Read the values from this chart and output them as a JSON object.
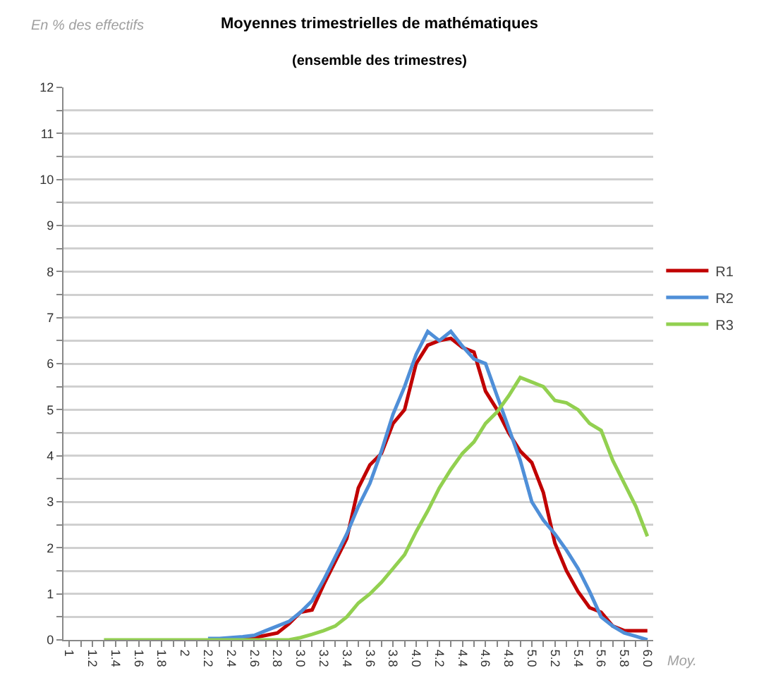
{
  "chart_data": {
    "type": "line",
    "title": "Moyennes trimestrielles de mathématiques",
    "subtitle": "(ensemble des trimestres)",
    "ylabel": "En % des effectifs",
    "xlabel": "Moy.",
    "x": [
      1.3,
      1.4,
      1.5,
      1.6,
      1.7,
      1.8,
      1.9,
      2,
      2.1,
      2.2,
      2.3,
      2.4,
      2.5,
      2.6,
      2.7,
      2.8,
      2.9,
      3,
      3.1,
      3.2,
      3.3,
      3.4,
      3.5,
      3.6,
      3.7,
      3.8,
      3.9,
      4,
      4.1,
      4.2,
      4.3,
      4.4,
      4.5,
      4.6,
      4.7,
      4.8,
      4.9,
      5,
      5.1,
      5.2,
      5.3,
      5.4,
      5.5,
      5.6,
      5.7,
      5.8,
      5.9,
      6
    ],
    "series": [
      {
        "name": "R1",
        "color": "#c00000",
        "values": [
          null,
          null,
          null,
          null,
          null,
          null,
          null,
          null,
          null,
          null,
          null,
          null,
          0.05,
          0.05,
          0.1,
          0.15,
          0.35,
          0.6,
          0.65,
          1.2,
          1.7,
          2.2,
          3.3,
          3.8,
          4.05,
          4.7,
          5.0,
          6.0,
          6.4,
          6.5,
          6.55,
          6.35,
          6.25,
          5.4,
          5.0,
          4.5,
          4.1,
          3.85,
          3.2,
          2.1,
          1.5,
          1.05,
          0.7,
          0.6,
          0.3,
          0.2,
          0.2,
          0.2
        ]
      },
      {
        "name": "R2",
        "color": "#4f8fd8",
        "values": [
          null,
          null,
          null,
          null,
          null,
          null,
          null,
          null,
          null,
          0.03,
          0.03,
          0.05,
          0.07,
          0.1,
          0.2,
          0.3,
          0.4,
          0.6,
          0.85,
          1.3,
          1.8,
          2.3,
          2.9,
          3.4,
          4.1,
          4.9,
          5.5,
          6.2,
          6.7,
          6.5,
          6.7,
          6.38,
          6.1,
          6.0,
          5.3,
          4.6,
          3.9,
          3.0,
          2.6,
          2.3,
          1.95,
          1.55,
          1.05,
          0.5,
          0.3,
          0.15,
          0.08,
          0.0
        ]
      },
      {
        "name": "R3",
        "color": "#92d050",
        "values": [
          0,
          0,
          0,
          0,
          0,
          0,
          0,
          0,
          0,
          0,
          0,
          0,
          0,
          0,
          0,
          0,
          0,
          0.05,
          0.12,
          0.2,
          0.3,
          0.5,
          0.8,
          1.0,
          1.25,
          1.55,
          1.85,
          2.35,
          2.8,
          3.3,
          3.7,
          4.05,
          4.3,
          4.7,
          4.95,
          5.3,
          5.7,
          5.6,
          5.5,
          5.2,
          5.15,
          5.0,
          4.7,
          4.55,
          3.9,
          3.4,
          2.9,
          2.25
        ]
      }
    ],
    "xlim": [
      0.95,
      6.05
    ],
    "xticks": [
      1,
      {
        "value": 1.1,
        "label": null
      },
      {
        "value": 1.2,
        "label": "1.2"
      },
      {
        "value": 1.3,
        "label": null
      },
      {
        "value": 1.4,
        "label": "1.4"
      },
      {
        "value": 1.5,
        "label": null
      },
      {
        "value": 1.6,
        "label": "1.6"
      },
      {
        "value": 1.7,
        "label": null
      },
      {
        "value": 1.8,
        "label": "1.8"
      },
      {
        "value": 1.9,
        "label": null
      },
      2,
      {
        "value": 2.1,
        "label": null
      },
      {
        "value": 2.2,
        "label": "2.2"
      },
      {
        "value": 2.3,
        "label": null
      },
      {
        "value": 2.4,
        "label": "2.4"
      },
      {
        "value": 2.5,
        "label": null
      },
      {
        "value": 2.6,
        "label": "2.6"
      },
      {
        "value": 2.7,
        "label": null
      },
      {
        "value": 2.8,
        "label": "2.8"
      },
      {
        "value": 2.9,
        "label": null
      },
      {
        "value": 3,
        "label": "3.0"
      },
      {
        "value": 3.1,
        "label": null
      },
      {
        "value": 3.2,
        "label": "3.2"
      },
      {
        "value": 3.3,
        "label": null
      },
      {
        "value": 3.4,
        "label": "3.4"
      },
      {
        "value": 3.5,
        "label": null
      },
      {
        "value": 3.6,
        "label": "3.6"
      },
      {
        "value": 3.7,
        "label": null
      },
      {
        "value": 3.8,
        "label": "3.8"
      },
      {
        "value": 3.9,
        "label": null
      },
      {
        "value": 4,
        "label": "4.0"
      },
      {
        "value": 4.1,
        "label": null
      },
      {
        "value": 4.2,
        "label": "4.2"
      },
      {
        "value": 4.3,
        "label": null
      },
      {
        "value": 4.4,
        "label": "4.4"
      },
      {
        "value": 4.5,
        "label": null
      },
      {
        "value": 4.6,
        "label": "4.6"
      },
      {
        "value": 4.7,
        "label": null
      },
      {
        "value": 4.8,
        "label": "4.8"
      },
      {
        "value": 4.9,
        "label": null
      },
      {
        "value": 5,
        "label": "5.0"
      },
      {
        "value": 5.1,
        "label": null
      },
      {
        "value": 5.2,
        "label": "5.2"
      },
      {
        "value": 5.3,
        "label": null
      },
      {
        "value": 5.4,
        "label": "5.4"
      },
      {
        "value": 5.5,
        "label": null
      },
      {
        "value": 5.6,
        "label": "5.6"
      },
      {
        "value": 5.7,
        "label": null
      },
      {
        "value": 5.8,
        "label": "5.8"
      },
      {
        "value": 5.9,
        "label": null
      },
      {
        "value": 6,
        "label": "6.0"
      }
    ],
    "ylim": [
      0,
      12
    ],
    "yticks": [
      0,
      {
        "value": 0.5,
        "label": null
      },
      1,
      {
        "value": 1.5,
        "label": null
      },
      2,
      {
        "value": 2.5,
        "label": null
      },
      3,
      {
        "value": 3.5,
        "label": null
      },
      4,
      {
        "value": 4.5,
        "label": null
      },
      5,
      {
        "value": 5.5,
        "label": null
      },
      6,
      {
        "value": 6.5,
        "label": null
      },
      7,
      {
        "value": 7.5,
        "label": null
      },
      8,
      {
        "value": 8.5,
        "label": null
      },
      9,
      {
        "value": 9.5,
        "label": null
      },
      10,
      {
        "value": 10.5,
        "label": null
      },
      11,
      {
        "value": 11.5,
        "label": null
      },
      12
    ],
    "grid": "y",
    "legend": "right",
    "marker": "none",
    "line_style": "solid"
  }
}
